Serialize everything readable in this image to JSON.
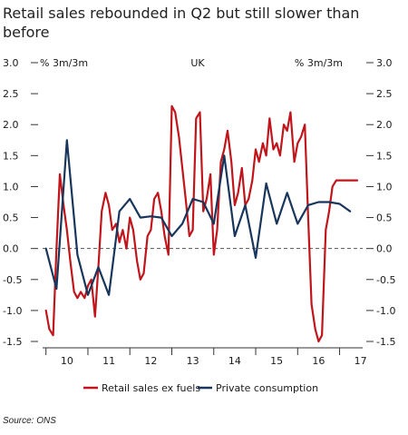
{
  "title": "Retail sales rebounded in Q2 but still slower than before",
  "source": "Source: ONS",
  "chart_data": {
    "type": "line",
    "title": "UK",
    "ylabel_left": "% 3m/3m",
    "ylabel_right": "% 3m/3m",
    "ylim": [
      -1.5,
      3.0
    ],
    "y_ticks": [
      "3.0",
      "2.5",
      "2.0",
      "1.5",
      "1.0",
      "0.5",
      "0.0",
      "-0.5",
      "-1.0",
      "-1.5"
    ],
    "y_tick_values": [
      3.0,
      2.5,
      2.0,
      1.5,
      1.0,
      0.5,
      0.0,
      -0.5,
      -1.0,
      -1.5
    ],
    "x_ticks": [
      "10",
      "11",
      "12",
      "13",
      "14",
      "15",
      "16",
      "17"
    ],
    "x_tick_values": [
      2010.5,
      2011.5,
      2012.5,
      2013.5,
      2014.5,
      2015.5,
      2016.5,
      2017.5
    ],
    "xlim": [
      2009.92,
      2017.55
    ],
    "grid": false,
    "zero_line": "dashed",
    "legend_position": "bottom",
    "series": [
      {
        "name": "Retail sales ex fuels",
        "color": "#c0151b",
        "x": [
          2010.0,
          2010.08,
          2010.17,
          2010.25,
          2010.33,
          2010.42,
          2010.5,
          2010.58,
          2010.67,
          2010.75,
          2010.83,
          2010.92,
          2011.0,
          2011.08,
          2011.17,
          2011.25,
          2011.33,
          2011.42,
          2011.5,
          2011.58,
          2011.67,
          2011.75,
          2011.83,
          2011.92,
          2012.0,
          2012.08,
          2012.17,
          2012.25,
          2012.33,
          2012.42,
          2012.5,
          2012.58,
          2012.67,
          2012.75,
          2012.83,
          2012.92,
          2013.0,
          2013.08,
          2013.17,
          2013.25,
          2013.33,
          2013.42,
          2013.5,
          2013.58,
          2013.67,
          2013.75,
          2013.83,
          2013.92,
          2014.0,
          2014.08,
          2014.17,
          2014.25,
          2014.33,
          2014.42,
          2014.5,
          2014.58,
          2014.67,
          2014.75,
          2014.83,
          2014.92,
          2015.0,
          2015.08,
          2015.17,
          2015.25,
          2015.33,
          2015.42,
          2015.5,
          2015.58,
          2015.67,
          2015.75,
          2015.83,
          2015.92,
          2016.0,
          2016.08,
          2016.17,
          2016.25,
          2016.33,
          2016.42,
          2016.5,
          2016.58,
          2016.67,
          2016.75,
          2016.83,
          2016.92,
          2017.0,
          2017.08,
          2017.17,
          2017.25,
          2017.33,
          2017.42
        ],
        "y": [
          -1.0,
          -1.3,
          -1.4,
          0.0,
          1.2,
          0.7,
          0.3,
          -0.2,
          -0.7,
          -0.8,
          -0.7,
          -0.8,
          -0.6,
          -0.5,
          -1.1,
          -0.3,
          0.6,
          0.9,
          0.7,
          0.3,
          0.4,
          0.1,
          0.3,
          0.0,
          0.5,
          0.3,
          -0.2,
          -0.5,
          -0.4,
          0.2,
          0.3,
          0.8,
          0.9,
          0.6,
          0.2,
          -0.1,
          2.3,
          2.2,
          1.8,
          1.3,
          0.8,
          0.2,
          0.3,
          2.1,
          2.2,
          0.6,
          0.8,
          1.2,
          -0.1,
          0.3,
          1.4,
          1.6,
          1.9,
          1.4,
          0.7,
          0.9,
          1.3,
          0.7,
          0.8,
          1.1,
          1.6,
          1.4,
          1.7,
          1.5,
          2.1,
          1.6,
          1.7,
          1.5,
          2.0,
          1.9,
          2.2,
          1.4,
          1.7,
          1.8,
          2.0,
          0.5,
          -0.9,
          -1.3,
          -1.5,
          -1.4,
          0.3,
          0.6,
          1.0,
          1.1,
          1.1,
          1.1,
          1.1,
          1.1,
          1.1,
          1.1
        ]
      },
      {
        "name": "Private consumption",
        "color": "#18365c",
        "x": [
          2010.0,
          2010.25,
          2010.5,
          2010.75,
          2011.0,
          2011.25,
          2011.5,
          2011.75,
          2012.0,
          2012.25,
          2012.5,
          2012.75,
          2013.0,
          2013.25,
          2013.5,
          2013.75,
          2014.0,
          2014.25,
          2014.5,
          2014.75,
          2015.0,
          2015.25,
          2015.5,
          2015.75,
          2016.0,
          2016.25,
          2016.5,
          2016.75,
          2017.0,
          2017.25
        ],
        "y": [
          0.0,
          -0.65,
          1.75,
          -0.1,
          -0.75,
          -0.3,
          -0.75,
          0.6,
          0.8,
          0.5,
          0.52,
          0.5,
          0.2,
          0.4,
          0.8,
          0.75,
          0.4,
          1.5,
          0.2,
          0.7,
          -0.15,
          1.05,
          0.4,
          0.9,
          0.4,
          0.7,
          0.75,
          0.75,
          0.72,
          0.6
        ]
      }
    ]
  }
}
